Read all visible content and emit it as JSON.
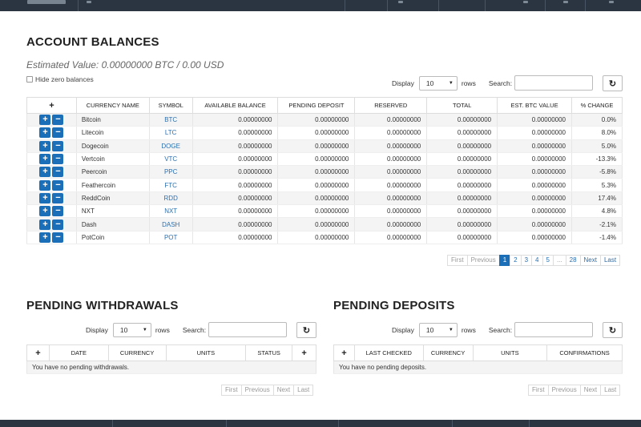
{
  "account_balances": {
    "title": "ACCOUNT BALANCES",
    "estimate": "Estimated Value: 0.00000000 BTC / 0.00 USD",
    "hide_zero_label": "Hide zero balances",
    "display_label": "Display",
    "rows_value": "10",
    "rows_label": "rows",
    "search_label": "Search:",
    "search_value": "",
    "headers": [
      "+",
      "CURRENCY NAME",
      "SYMBOL",
      "AVAILABLE BALANCE",
      "PENDING DEPOSIT",
      "RESERVED",
      "TOTAL",
      "EST. BTC VALUE",
      "% CHANGE"
    ],
    "rows": [
      {
        "name": "Bitcoin",
        "symbol": "BTC",
        "available": "0.00000000",
        "pending": "0.00000000",
        "reserved": "0.00000000",
        "total": "0.00000000",
        "btc": "0.00000000",
        "change": "0.0%"
      },
      {
        "name": "Litecoin",
        "symbol": "LTC",
        "available": "0.00000000",
        "pending": "0.00000000",
        "reserved": "0.00000000",
        "total": "0.00000000",
        "btc": "0.00000000",
        "change": "8.0%"
      },
      {
        "name": "Dogecoin",
        "symbol": "DOGE",
        "available": "0.00000000",
        "pending": "0.00000000",
        "reserved": "0.00000000",
        "total": "0.00000000",
        "btc": "0.00000000",
        "change": "5.0%"
      },
      {
        "name": "Vertcoin",
        "symbol": "VTC",
        "available": "0.00000000",
        "pending": "0.00000000",
        "reserved": "0.00000000",
        "total": "0.00000000",
        "btc": "0.00000000",
        "change": "-13.3%"
      },
      {
        "name": "Peercoin",
        "symbol": "PPC",
        "available": "0.00000000",
        "pending": "0.00000000",
        "reserved": "0.00000000",
        "total": "0.00000000",
        "btc": "0.00000000",
        "change": "-5.8%"
      },
      {
        "name": "Feathercoin",
        "symbol": "FTC",
        "available": "0.00000000",
        "pending": "0.00000000",
        "reserved": "0.00000000",
        "total": "0.00000000",
        "btc": "0.00000000",
        "change": "5.3%"
      },
      {
        "name": "ReddCoin",
        "symbol": "RDD",
        "available": "0.00000000",
        "pending": "0.00000000",
        "reserved": "0.00000000",
        "total": "0.00000000",
        "btc": "0.00000000",
        "change": "17.4%"
      },
      {
        "name": "NXT",
        "symbol": "NXT",
        "available": "0.00000000",
        "pending": "0.00000000",
        "reserved": "0.00000000",
        "total": "0.00000000",
        "btc": "0.00000000",
        "change": "4.8%"
      },
      {
        "name": "Dash",
        "symbol": "DASH",
        "available": "0.00000000",
        "pending": "0.00000000",
        "reserved": "0.00000000",
        "total": "0.00000000",
        "btc": "0.00000000",
        "change": "-2.1%"
      },
      {
        "name": "PotCoin",
        "symbol": "POT",
        "available": "0.00000000",
        "pending": "0.00000000",
        "reserved": "0.00000000",
        "total": "0.00000000",
        "btc": "0.00000000",
        "change": "-1.4%"
      }
    ],
    "pager": [
      "First",
      "Previous",
      "1",
      "2",
      "3",
      "4",
      "5",
      "...",
      "28",
      "Next",
      "Last"
    ],
    "pager_active": "1"
  },
  "pending_withdrawals": {
    "title": "PENDING WITHDRAWALS",
    "display_label": "Display",
    "rows_value": "10",
    "rows_label": "rows",
    "search_label": "Search:",
    "search_value": "",
    "headers": [
      "+",
      "DATE",
      "CURRENCY",
      "UNITS",
      "STATUS",
      "+"
    ],
    "empty_message": "You have no pending withdrawals.",
    "pager": [
      "First",
      "Previous",
      "Next",
      "Last"
    ]
  },
  "pending_deposits": {
    "title": "PENDING DEPOSITS",
    "display_label": "Display",
    "rows_value": "10",
    "rows_label": "rows",
    "search_label": "Search:",
    "search_value": "",
    "headers": [
      "+",
      "LAST CHECKED",
      "CURRENCY",
      "UNITS",
      "CONFIRMATIONS"
    ],
    "empty_message": "You have no pending deposits.",
    "pager": [
      "First",
      "Previous",
      "Next",
      "Last"
    ]
  },
  "icons": {
    "refresh": "refresh-icon",
    "plus": "plus-icon",
    "minus": "minus-icon"
  },
  "colors": {
    "nav_bg": "#2b3542",
    "accent": "#1a6fb8",
    "link": "#2a6fb0"
  }
}
